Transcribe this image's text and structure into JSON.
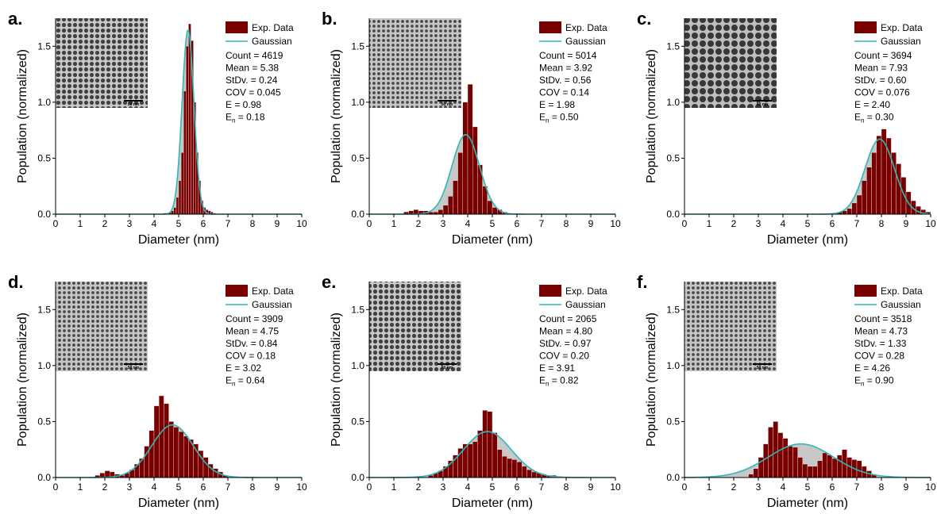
{
  "figure": {
    "panels": [
      {
        "label": "a.",
        "count": "Count = 4619",
        "mean": "Mean = 5.38",
        "stdv": "StDv. = 0.24",
        "cov": "COV  = 0.045",
        "e": "E  = 0.98",
        "en_base": "E",
        "en_sub": "n",
        "en_value": " = 0.18"
      },
      {
        "label": "b.",
        "count": "Count = 5014",
        "mean": "Mean = 3.92",
        "stdv": "StDv. = 0.56",
        "cov": "COV  = 0.14",
        "e": "E  = 1.98",
        "en_base": "E",
        "en_sub": "n",
        "en_value": " = 0.50"
      },
      {
        "label": "c.",
        "count": "Count = 3694",
        "mean": "Mean = 7.93",
        "stdv": "StDv. = 0.60",
        "cov": "COV  = 0.076",
        "e": "E  = 2.40",
        "en_base": "E",
        "en_sub": "n",
        "en_value": " = 0.30"
      },
      {
        "label": "d.",
        "count": "Count = 3909",
        "mean": "Mean = 4.75",
        "stdv": "StDv. = 0.84",
        "cov": "COV  = 0.18",
        "e": "E  = 3.02",
        "en_base": "E",
        "en_sub": "n",
        "en_value": " = 0.64"
      },
      {
        "label": "e.",
        "count": "Count = 2065",
        "mean": "Mean = 4.80",
        "stdv": "StDv. = 0.97",
        "cov": "COV  = 0.20",
        "e": "E  = 3.91",
        "en_base": "E",
        "en_sub": "n",
        "en_value": " = 0.82"
      },
      {
        "label": "f.",
        "count": "Count = 3518",
        "mean": "Mean = 4.73",
        "stdv": "StDv. = 1.33",
        "cov": "COV  = 0.28",
        "e": "E  = 4.26",
        "en_base": "E",
        "en_sub": "n",
        "en_value": " = 0.90"
      }
    ],
    "legend_exp": "Exp. Data",
    "legend_gauss": "Gaussian",
    "scale_bar_label": "50 nm",
    "colors": {
      "bar": "#7a0000",
      "gaussian": "#2eb8b8",
      "fill": "#c8c8c8"
    }
  },
  "chart_data": [
    {
      "type": "bar",
      "panel": "a.",
      "xlabel": "Diameter (nm)",
      "ylabel": "Population (normalized)",
      "xlim": [
        0,
        10
      ],
      "ylim": [
        0,
        1.75
      ],
      "xticks": [
        0,
        1,
        2,
        3,
        4,
        5,
        6,
        7,
        8,
        9,
        10
      ],
      "yticks": [
        0.0,
        0.5,
        1.0,
        1.5
      ],
      "bin_width": 0.1,
      "bins_start": [
        4.4,
        4.5,
        4.6,
        4.7,
        4.8,
        4.9,
        5.0,
        5.1,
        5.2,
        5.3,
        5.4,
        5.5,
        5.6,
        5.7,
        5.8,
        5.9,
        6.0,
        6.1,
        6.2,
        6.3,
        6.4
      ],
      "values": [
        0.01,
        0.01,
        0.02,
        0.03,
        0.06,
        0.15,
        0.3,
        0.55,
        1.1,
        1.5,
        1.7,
        1.55,
        1.0,
        0.55,
        0.3,
        0.12,
        0.06,
        0.04,
        0.03,
        0.02,
        0.01
      ],
      "gaussian": {
        "mean": 5.38,
        "stdev": 0.24,
        "peak": 1.65
      }
    },
    {
      "type": "bar",
      "panel": "b.",
      "xlabel": "Diameter (nm)",
      "ylabel": "Population (normalized)",
      "xlim": [
        0,
        10
      ],
      "ylim": [
        0,
        1.75
      ],
      "xticks": [
        0,
        1,
        2,
        3,
        4,
        5,
        6,
        7,
        8,
        9,
        10
      ],
      "yticks": [
        0.0,
        0.5,
        1.0,
        1.5
      ],
      "bin_width": 0.2,
      "bins_start": [
        1.4,
        1.6,
        1.8,
        2.0,
        2.2,
        2.4,
        2.6,
        2.8,
        3.0,
        3.2,
        3.4,
        3.6,
        3.8,
        4.0,
        4.2,
        4.4,
        4.6,
        4.8,
        5.0,
        5.2,
        5.4
      ],
      "values": [
        0.02,
        0.03,
        0.04,
        0.03,
        0.03,
        0.02,
        0.02,
        0.04,
        0.08,
        0.16,
        0.3,
        0.55,
        1.0,
        1.16,
        0.78,
        0.44,
        0.25,
        0.12,
        0.06,
        0.04,
        0.02
      ],
      "gaussian": {
        "mean": 3.92,
        "stdev": 0.56,
        "peak": 0.71
      }
    },
    {
      "type": "bar",
      "panel": "c.",
      "xlabel": "Diameter (nm)",
      "ylabel": "Population (normalized)",
      "xlim": [
        0,
        10
      ],
      "ylim": [
        0,
        1.75
      ],
      "xticks": [
        0,
        1,
        2,
        3,
        4,
        5,
        6,
        7,
        8,
        9,
        10
      ],
      "yticks": [
        0.0,
        0.5,
        1.0,
        1.5
      ],
      "bin_width": 0.2,
      "bins_start": [
        6.0,
        6.2,
        6.4,
        6.6,
        6.8,
        7.0,
        7.2,
        7.4,
        7.6,
        7.8,
        8.0,
        8.2,
        8.4,
        8.6,
        8.8,
        9.0,
        9.2,
        9.4,
        9.6,
        9.8
      ],
      "values": [
        0.01,
        0.02,
        0.03,
        0.05,
        0.1,
        0.17,
        0.3,
        0.42,
        0.55,
        0.7,
        0.76,
        0.68,
        0.55,
        0.45,
        0.33,
        0.2,
        0.12,
        0.07,
        0.04,
        0.02
      ],
      "gaussian": {
        "mean": 7.93,
        "stdev": 0.6,
        "peak": 0.67
      }
    },
    {
      "type": "bar",
      "panel": "d.",
      "xlabel": "Diameter (nm)",
      "ylabel": "Population (normalized)",
      "xlim": [
        0,
        10
      ],
      "ylim": [
        0,
        1.75
      ],
      "xticks": [
        0,
        1,
        2,
        3,
        4,
        5,
        6,
        7,
        8,
        9,
        10
      ],
      "yticks": [
        0.0,
        0.5,
        1.0,
        1.5
      ],
      "bin_width": 0.2,
      "bins_start": [
        1.6,
        1.8,
        2.0,
        2.2,
        2.4,
        2.6,
        2.8,
        3.0,
        3.2,
        3.4,
        3.6,
        3.8,
        4.0,
        4.2,
        4.4,
        4.6,
        4.8,
        5.0,
        5.2,
        5.4,
        5.6,
        5.8,
        6.0,
        6.2,
        6.4,
        6.6,
        6.8
      ],
      "values": [
        0.02,
        0.04,
        0.06,
        0.05,
        0.03,
        0.02,
        0.04,
        0.07,
        0.12,
        0.17,
        0.28,
        0.42,
        0.64,
        0.73,
        0.66,
        0.5,
        0.45,
        0.41,
        0.37,
        0.34,
        0.3,
        0.24,
        0.18,
        0.12,
        0.08,
        0.05,
        0.02
      ],
      "gaussian": {
        "mean": 4.75,
        "stdev": 0.84,
        "peak": 0.47
      }
    },
    {
      "type": "bar",
      "panel": "e.",
      "xlabel": "Diameter (nm)",
      "ylabel": "Population (normalized)",
      "xlim": [
        0,
        10
      ],
      "ylim": [
        0,
        1.75
      ],
      "xticks": [
        0,
        1,
        2,
        3,
        4,
        5,
        6,
        7,
        8,
        9,
        10
      ],
      "yticks": [
        0.0,
        0.5,
        1.0,
        1.5
      ],
      "bin_width": 0.2,
      "bins_start": [
        2.4,
        2.6,
        2.8,
        3.0,
        3.2,
        3.4,
        3.6,
        3.8,
        4.0,
        4.2,
        4.4,
        4.6,
        4.8,
        5.0,
        5.2,
        5.4,
        5.6,
        5.8,
        6.0,
        6.2,
        6.4,
        6.6,
        6.8,
        7.0,
        7.2,
        7.4,
        7.6
      ],
      "values": [
        0.02,
        0.04,
        0.06,
        0.1,
        0.15,
        0.2,
        0.26,
        0.3,
        0.3,
        0.32,
        0.42,
        0.6,
        0.59,
        0.4,
        0.25,
        0.19,
        0.17,
        0.16,
        0.14,
        0.1,
        0.07,
        0.05,
        0.04,
        0.03,
        0.02,
        0.02,
        0.01
      ],
      "gaussian": {
        "mean": 4.8,
        "stdev": 0.97,
        "peak": 0.41
      }
    },
    {
      "type": "bar",
      "panel": "f.",
      "xlabel": "Diameter (nm)",
      "ylabel": "Population (normalized)",
      "xlim": [
        0,
        10
      ],
      "ylim": [
        0,
        1.75
      ],
      "xticks": [
        0,
        1,
        2,
        3,
        4,
        5,
        6,
        7,
        8,
        9,
        10
      ],
      "yticks": [
        0.0,
        0.5,
        1.0,
        1.5
      ],
      "bin_width": 0.2,
      "bins_start": [
        2.6,
        2.8,
        3.0,
        3.2,
        3.4,
        3.6,
        3.8,
        4.0,
        4.2,
        4.4,
        4.6,
        4.8,
        5.0,
        5.2,
        5.4,
        5.6,
        5.8,
        6.0,
        6.2,
        6.4,
        6.6,
        6.8,
        7.0,
        7.2,
        7.4,
        7.6
      ],
      "values": [
        0.03,
        0.08,
        0.18,
        0.3,
        0.45,
        0.5,
        0.4,
        0.35,
        0.28,
        0.27,
        0.18,
        0.12,
        0.1,
        0.1,
        0.15,
        0.22,
        0.2,
        0.17,
        0.2,
        0.25,
        0.18,
        0.16,
        0.15,
        0.1,
        0.06,
        0.03
      ],
      "gaussian": {
        "mean": 4.73,
        "stdev": 1.33,
        "peak": 0.3
      }
    }
  ]
}
